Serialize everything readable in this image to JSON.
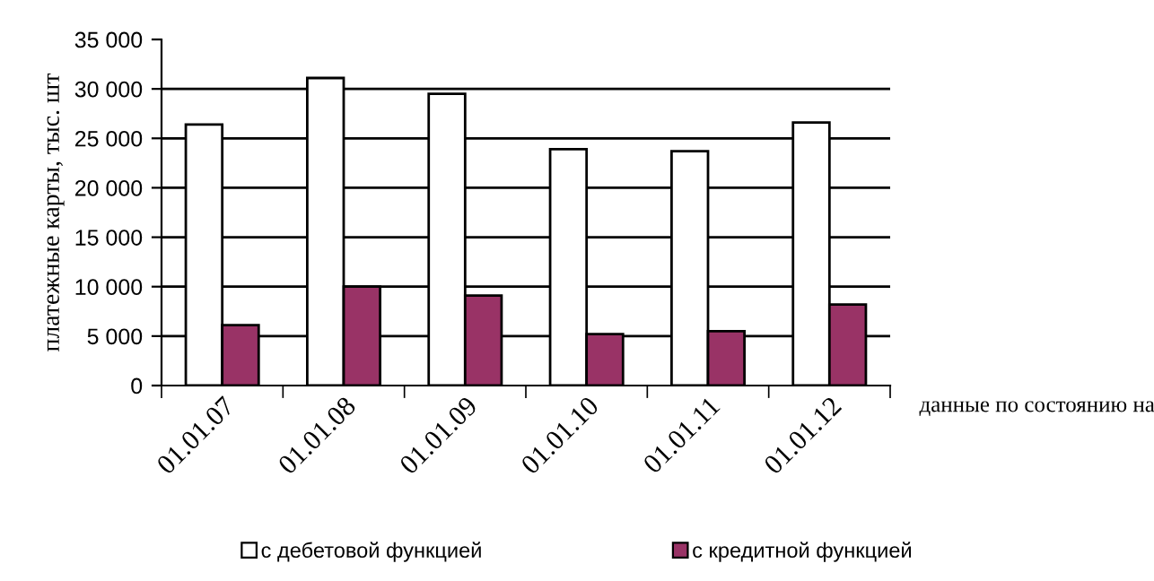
{
  "chart_data": {
    "type": "bar",
    "xlabel": "данные по состоянию на",
    "ylabel": "платежные карты, тыс. шт",
    "categories": [
      "01.01.07",
      "01.01.08",
      "01.01.09",
      "01.01.10",
      "01.01.11",
      "01.01.12"
    ],
    "series": [
      {
        "name": "с дебетовой функцией",
        "color": "#ffffff",
        "values": [
          26400,
          31100,
          29500,
          23900,
          23700,
          26600
        ]
      },
      {
        "name": "с кредитной функцией",
        "color": "#993366",
        "values": [
          6100,
          10000,
          9100,
          5200,
          5500,
          8200
        ]
      }
    ],
    "ylim": [
      0,
      35000
    ],
    "yticks": [
      {
        "value": 0,
        "label": "0"
      },
      {
        "value": 5000,
        "label": "5 000"
      },
      {
        "value": 10000,
        "label": "10 000"
      },
      {
        "value": 15000,
        "label": "15 000"
      },
      {
        "value": 20000,
        "label": "20 000"
      },
      {
        "value": 25000,
        "label": "25 000"
      },
      {
        "value": 30000,
        "label": "30 000"
      },
      {
        "value": 35000,
        "label": "35 000"
      }
    ],
    "grid": "y",
    "legend": "bottom"
  }
}
